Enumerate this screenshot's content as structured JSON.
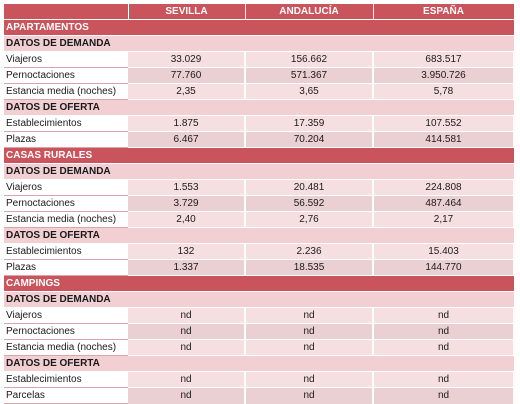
{
  "header": {
    "col1": "SEVILLA",
    "col2": "ANDALUCÍA",
    "col3": "ESPAÑA"
  },
  "sections": [
    {
      "title": "APARTAMENTOS",
      "demand_title": "DATOS DE DEMANDA",
      "demand_rows": [
        {
          "label": "Viajeros",
          "values": [
            "33.029",
            "156.662",
            "683.517"
          ]
        },
        {
          "label": "Pernoctaciones",
          "values": [
            "77.760",
            "571.367",
            "3.950.726"
          ]
        },
        {
          "label": "Estancia media (noches)",
          "values": [
            "2,35",
            "3,65",
            "5,78"
          ]
        }
      ],
      "supply_title": "DATOS DE OFERTA",
      "supply_rows": [
        {
          "label": "Establecimientos",
          "values": [
            "1.875",
            "17.359",
            "107.552"
          ]
        },
        {
          "label": "Plazas",
          "values": [
            "6.467",
            "70.204",
            "414.581"
          ]
        }
      ]
    },
    {
      "title": "CASAS RURALES",
      "demand_title": "DATOS DE DEMANDA",
      "demand_rows": [
        {
          "label": "Viajeros",
          "values": [
            "1.553",
            "20.481",
            "224.808"
          ]
        },
        {
          "label": "Pernoctaciones",
          "values": [
            "3.729",
            "56.592",
            "487.464"
          ]
        },
        {
          "label": "Estancia media (noches)",
          "values": [
            "2,40",
            "2,76",
            "2,17"
          ]
        }
      ],
      "supply_title": "DATOS DE OFERTA",
      "supply_rows": [
        {
          "label": "Establecimientos",
          "values": [
            "132",
            "2.236",
            "15.403"
          ]
        },
        {
          "label": "Plazas",
          "values": [
            "1.337",
            "18.535",
            "144.770"
          ]
        }
      ]
    },
    {
      "title": "CAMPINGS",
      "demand_title": "DATOS DE DEMANDA",
      "demand_rows": [
        {
          "label": "Viajeros",
          "values": [
            "nd",
            "nd",
            "nd"
          ]
        },
        {
          "label": "Pernoctaciones",
          "values": [
            "nd",
            "nd",
            "nd"
          ]
        },
        {
          "label": "Estancia media (noches)",
          "values": [
            "nd",
            "nd",
            "nd"
          ]
        }
      ],
      "supply_title": "DATOS DE OFERTA",
      "supply_rows": [
        {
          "label": "Establecimientos",
          "values": [
            "nd",
            "nd",
            "nd"
          ]
        },
        {
          "label": "Parcelas",
          "values": [
            "nd",
            "nd",
            "nd"
          ]
        }
      ]
    }
  ]
}
